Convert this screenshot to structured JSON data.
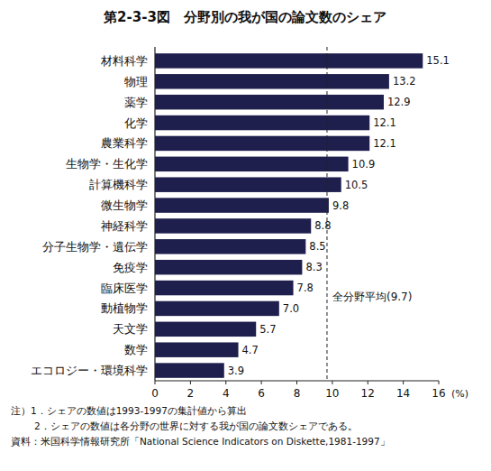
{
  "chart_data": {
    "type": "bar",
    "orientation": "horizontal",
    "title": "第2-3-3図　分野別の我が国の論文数のシェア",
    "categories": [
      "材料科学",
      "物理",
      "薬学",
      "化学",
      "農業科学",
      "生物学・生化学",
      "計算機科学",
      "微生物学",
      "神経科学",
      "分子生物学・遺伝学",
      "免疫学",
      "臨床医学",
      "動植物学",
      "天文学",
      "数学",
      "エコロジー・環境科学"
    ],
    "values": [
      15.1,
      13.2,
      12.9,
      12.1,
      12.1,
      10.9,
      10.5,
      9.8,
      8.8,
      8.5,
      8.3,
      7.8,
      7.0,
      5.7,
      4.7,
      3.9
    ],
    "value_labels": [
      "15.1",
      "13.2",
      "12.9",
      "12.1",
      "12.1",
      "10.9",
      "10.5",
      "9.8",
      "8.8",
      "8.5",
      "8.3",
      "7.8",
      "7.0",
      "5.7",
      "4.7",
      "3.9"
    ],
    "color": "#1e1f4d",
    "data_labels": true,
    "grid": false,
    "xlim": [
      0,
      16
    ],
    "xticks": [
      0,
      2,
      4,
      6,
      8,
      10,
      12,
      14,
      16
    ],
    "x_label": "(%)",
    "reference_line": {
      "value": 9.7,
      "label": "全分野平均(9.7)"
    },
    "notes": [
      "注）1．シェアの数値は1993-1997の集計値から算出",
      "2．シェアの数値は各分野の世界に対する我が国の論文数シェアである。"
    ],
    "source": "資料：米国科学情報研究所「National Science Indicators on Diskette,1981-1997」"
  }
}
